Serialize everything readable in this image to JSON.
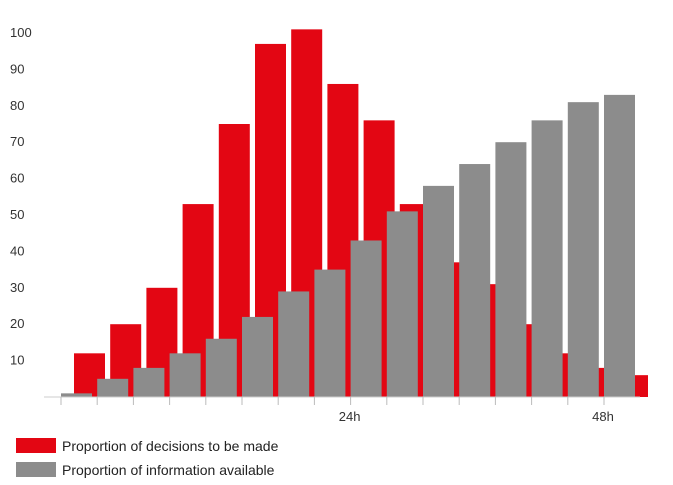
{
  "chart_data": {
    "type": "bar",
    "y_ticks": [
      "100",
      "90",
      "80",
      "70",
      "60",
      "50",
      "40",
      "30",
      "20",
      "10"
    ],
    "x_tick_labels": [
      {
        "label": "24h",
        "at": 8
      },
      {
        "label": "48h",
        "at": 15
      }
    ],
    "ylim": [
      0,
      100
    ],
    "grid": false,
    "legend_placement": "bottom-left",
    "series": [
      {
        "name": "Proportion of decisions to be made",
        "color": "#e30613",
        "values": [
          12,
          20,
          30,
          53,
          75,
          97,
          101,
          86,
          76,
          53,
          37,
          31,
          20,
          12,
          8,
          6
        ]
      },
      {
        "name": "Proportion of information available",
        "color": "#8c8c8c",
        "values": [
          1,
          5,
          8,
          12,
          16,
          22,
          29,
          35,
          43,
          51,
          58,
          64,
          70,
          76,
          81,
          83
        ]
      }
    ]
  }
}
